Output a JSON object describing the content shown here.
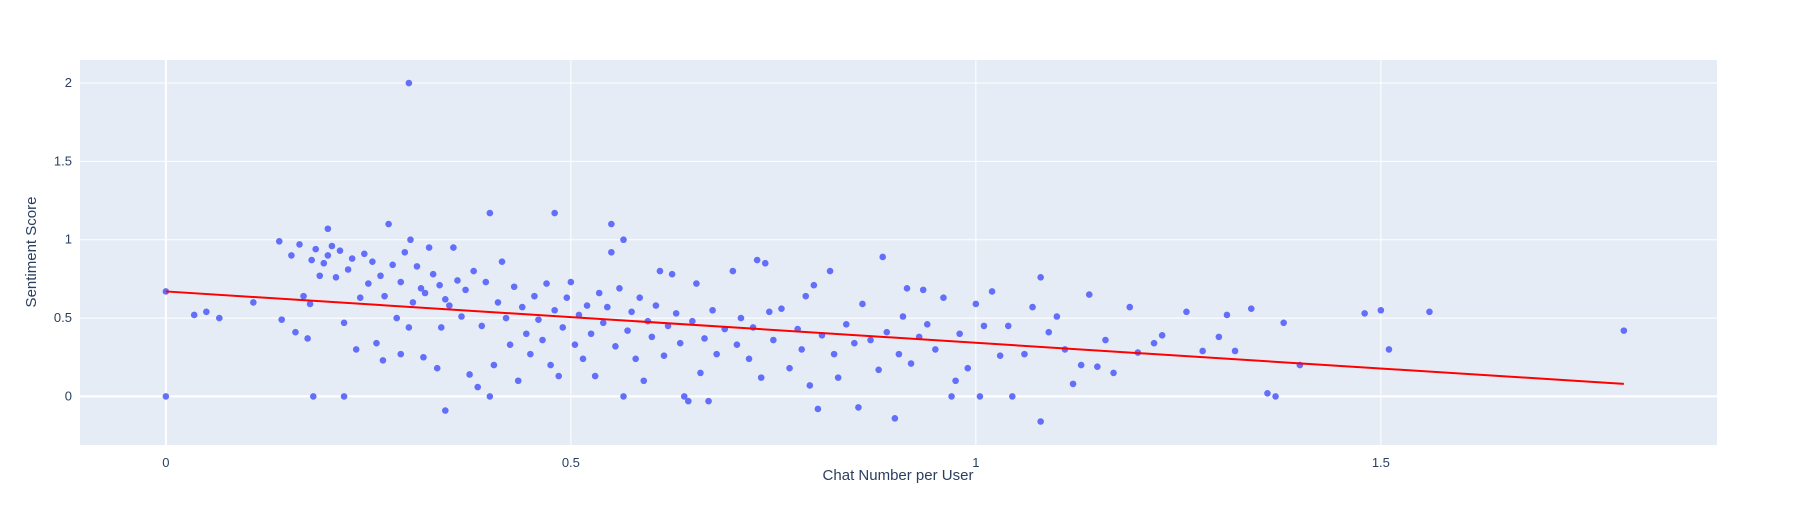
{
  "chart_data": {
    "type": "scatter",
    "xlabel": "Chat Number per User",
    "ylabel": "Sentiment Score",
    "xlim": [
      -0.106,
      1.915
    ],
    "ylim": [
      -0.31,
      2.147
    ],
    "xticks": [
      0,
      0.5,
      1,
      1.5
    ],
    "yticks": [
      0,
      0.5,
      1,
      1.5,
      2
    ],
    "grid": true,
    "series": [
      {
        "type": "scatter",
        "color": "#636efa",
        "x": [
          0,
          0,
          0.035,
          0.05,
          0.066,
          0.108,
          0.14,
          0.143,
          0.155,
          0.16,
          0.165,
          0.17,
          0.175,
          0.178,
          0.18,
          0.182,
          0.185,
          0.19,
          0.195,
          0.2,
          0.2,
          0.205,
          0.21,
          0.215,
          0.22,
          0.225,
          0.23,
          0.235,
          0.22,
          0.24,
          0.245,
          0.25,
          0.255,
          0.26,
          0.265,
          0.268,
          0.27,
          0.275,
          0.28,
          0.285,
          0.29,
          0.29,
          0.295,
          0.3,
          0.3,
          0.302,
          0.305,
          0.31,
          0.315,
          0.318,
          0.32,
          0.325,
          0.33,
          0.335,
          0.338,
          0.34,
          0.345,
          0.345,
          0.35,
          0.355,
          0.36,
          0.365,
          0.37,
          0.375,
          0.38,
          0.385,
          0.39,
          0.395,
          0.4,
          0.4,
          0.405,
          0.41,
          0.415,
          0.42,
          0.425,
          0.43,
          0.435,
          0.44,
          0.445,
          0.45,
          0.455,
          0.46,
          0.465,
          0.47,
          0.475,
          0.48,
          0.48,
          0.485,
          0.49,
          0.495,
          0.5,
          0.505,
          0.51,
          0.515,
          0.52,
          0.525,
          0.53,
          0.535,
          0.54,
          0.545,
          0.55,
          0.55,
          0.555,
          0.56,
          0.565,
          0.565,
          0.57,
          0.575,
          0.58,
          0.585,
          0.59,
          0.595,
          0.6,
          0.605,
          0.61,
          0.615,
          0.62,
          0.625,
          0.63,
          0.635,
          0.64,
          0.645,
          0.65,
          0.655,
          0.66,
          0.665,
          0.67,
          0.675,
          0.68,
          0.69,
          0.7,
          0.705,
          0.71,
          0.72,
          0.725,
          0.73,
          0.735,
          0.74,
          0.745,
          0.75,
          0.76,
          0.77,
          0.78,
          0.785,
          0.79,
          0.795,
          0.8,
          0.805,
          0.81,
          0.82,
          0.825,
          0.83,
          0.84,
          0.85,
          0.855,
          0.86,
          0.87,
          0.88,
          0.885,
          0.89,
          0.9,
          0.905,
          0.91,
          0.915,
          0.92,
          0.93,
          0.935,
          0.94,
          0.95,
          0.96,
          0.97,
          0.975,
          0.98,
          0.99,
          1.0,
          1.005,
          1.01,
          1.02,
          1.03,
          1.04,
          1.045,
          1.06,
          1.07,
          1.08,
          1.08,
          1.09,
          1.1,
          1.11,
          1.12,
          1.13,
          1.14,
          1.15,
          1.16,
          1.17,
          1.19,
          1.2,
          1.22,
          1.23,
          1.26,
          1.28,
          1.3,
          1.31,
          1.32,
          1.34,
          1.36,
          1.37,
          1.38,
          1.4,
          1.48,
          1.5,
          1.51,
          1.56,
          1.8
        ],
        "values": [
          0.67,
          0,
          0.52,
          0.54,
          0.5,
          0.6,
          0.99,
          0.49,
          0.9,
          0.41,
          0.97,
          0.64,
          0.37,
          0.59,
          0.87,
          0,
          0.94,
          0.77,
          0.85,
          1.07,
          0.9,
          0.96,
          0.76,
          0.93,
          0.47,
          0.81,
          0.88,
          0.3,
          0,
          0.63,
          0.91,
          0.72,
          0.86,
          0.34,
          0.77,
          0.23,
          0.64,
          1.1,
          0.84,
          0.5,
          0.27,
          0.73,
          0.92,
          2,
          0.44,
          1,
          0.6,
          0.83,
          0.69,
          0.25,
          0.66,
          0.95,
          0.78,
          0.18,
          0.71,
          0.44,
          0.62,
          -0.09,
          0.58,
          0.95,
          0.74,
          0.51,
          0.68,
          0.14,
          0.8,
          0.06,
          0.45,
          0.73,
          1.17,
          0,
          0.2,
          0.6,
          0.86,
          0.5,
          0.33,
          0.7,
          0.1,
          0.57,
          0.4,
          0.27,
          0.64,
          0.49,
          0.36,
          0.72,
          0.2,
          1.17,
          0.55,
          0.13,
          0.44,
          0.63,
          0.73,
          0.33,
          0.52,
          0.24,
          0.58,
          0.4,
          0.13,
          0.66,
          0.47,
          0.57,
          1.1,
          0.92,
          0.32,
          0.69,
          1,
          0,
          0.42,
          0.54,
          0.24,
          0.63,
          0.1,
          0.48,
          0.38,
          0.58,
          0.8,
          0.26,
          0.45,
          0.78,
          0.53,
          0.34,
          0,
          -0.03,
          0.48,
          0.72,
          0.15,
          0.37,
          -0.03,
          0.55,
          0.27,
          0.43,
          0.8,
          0.33,
          0.5,
          0.24,
          0.44,
          0.87,
          0.12,
          0.85,
          0.54,
          0.36,
          0.56,
          0.18,
          0.43,
          0.3,
          0.64,
          0.07,
          0.71,
          -0.08,
          0.39,
          0.8,
          0.27,
          0.12,
          0.46,
          0.34,
          -0.07,
          0.59,
          0.36,
          0.17,
          0.89,
          0.41,
          -0.14,
          0.27,
          0.51,
          0.69,
          0.21,
          0.38,
          0.68,
          0.46,
          0.3,
          0.63,
          0,
          0.1,
          0.4,
          0.18,
          0.59,
          0,
          0.45,
          0.67,
          0.26,
          0.45,
          0,
          0.27,
          0.57,
          0.76,
          -0.16,
          0.41,
          0.51,
          0.3,
          0.08,
          0.2,
          0.65,
          0.19,
          0.36,
          0.15,
          0.57,
          0.28,
          0.34,
          0.39,
          0.54,
          0.29,
          0.38,
          0.52,
          0.29,
          0.56,
          0.02,
          0,
          0.47,
          0.2,
          0.53,
          0.55,
          0.3,
          0.54,
          0.42
        ]
      },
      {
        "type": "line",
        "color": "#ff0000",
        "x": [
          0,
          1.8
        ],
        "values": [
          0.67,
          0.08
        ]
      }
    ]
  }
}
